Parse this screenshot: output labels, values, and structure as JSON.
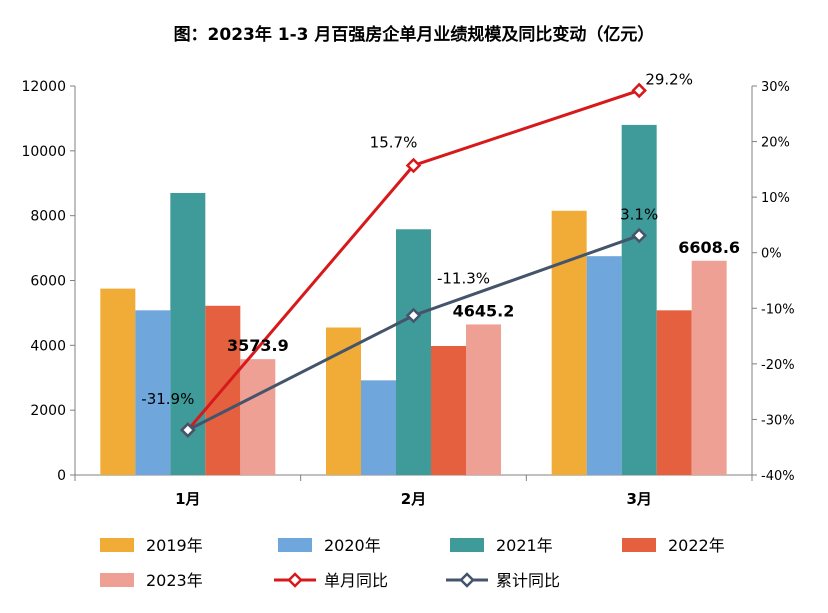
{
  "chart_data": {
    "type": "bar",
    "title": "图：2023年 1-3 月百强房企单月业绩规模及同比变动（亿元）",
    "categories": [
      "1月",
      "2月",
      "3月"
    ],
    "series": [
      {
        "name": "2019年",
        "type": "bar",
        "axis": "left",
        "color": "#f0ac36",
        "values": [
          5750,
          4550,
          8150
        ]
      },
      {
        "name": "2020年",
        "type": "bar",
        "axis": "left",
        "color": "#6fa6dc",
        "values": [
          5080,
          2920,
          6750
        ]
      },
      {
        "name": "2021年",
        "type": "bar",
        "axis": "left",
        "color": "#3f9a9a",
        "values": [
          8700,
          7580,
          10800
        ]
      },
      {
        "name": "2022年",
        "type": "bar",
        "axis": "left",
        "color": "#e5603f",
        "values": [
          5220,
          3980,
          5080
        ]
      },
      {
        "name": "2023年",
        "type": "bar",
        "axis": "left",
        "color": "#efa095",
        "values": [
          3573.9,
          4645.2,
          6608.6
        ],
        "labels": [
          "3573.9",
          "4645.2",
          "6608.6"
        ]
      },
      {
        "name": "单月同比",
        "type": "line",
        "axis": "right",
        "color": "#d7191c",
        "values": [
          -31.9,
          15.7,
          29.2
        ],
        "labels": [
          "",
          "15.7%",
          "29.2%"
        ]
      },
      {
        "name": "累计同比",
        "type": "line",
        "axis": "right",
        "color": "#44546a",
        "values": [
          -31.9,
          -11.3,
          3.1
        ],
        "labels": [
          "-31.9%",
          "-11.3%",
          "3.1%"
        ]
      }
    ],
    "y_left": {
      "min": 0,
      "max": 12000,
      "ticks": [
        "0",
        "2000",
        "4000",
        "6000",
        "8000",
        "10000",
        "12000"
      ]
    },
    "y_right": {
      "min": -40,
      "max": 30,
      "ticks": [
        "-40%",
        "-30%",
        "-20%",
        "-10%",
        "0%",
        "10%",
        "20%",
        "30%"
      ]
    },
    "grid": false,
    "legend_position": "bottom"
  }
}
